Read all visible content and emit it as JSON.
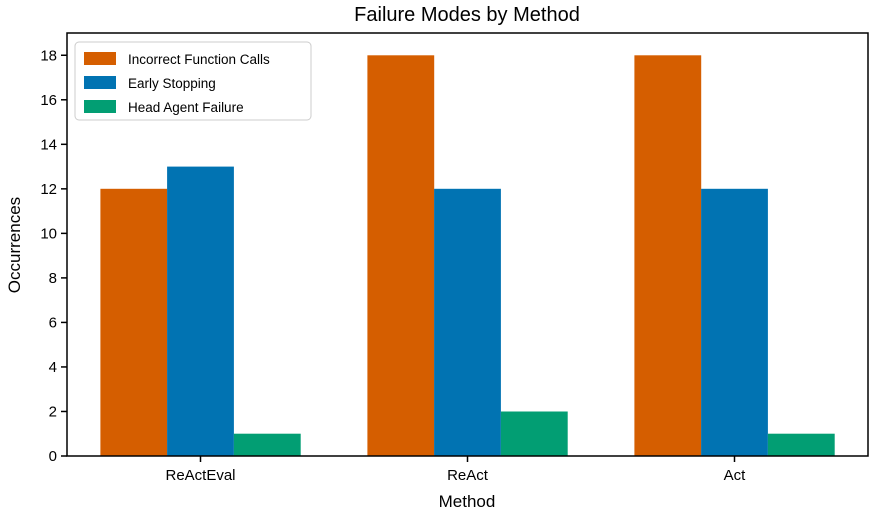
{
  "chart_data": {
    "type": "bar",
    "title": "Failure Modes by Method",
    "xlabel": "Method",
    "ylabel": "Occurrences",
    "categories": [
      "ReActEval",
      "ReAct",
      "Act"
    ],
    "series": [
      {
        "name": "Incorrect Function Calls",
        "color": "#d55e00",
        "values": [
          12,
          18,
          18
        ]
      },
      {
        "name": "Early Stopping",
        "color": "#0173b2",
        "values": [
          13,
          12,
          12
        ]
      },
      {
        "name": "Head Agent Failure",
        "color": "#029e73",
        "values": [
          1,
          2,
          1
        ]
      }
    ],
    "ylim": [
      0,
      19
    ],
    "yticks": [
      0,
      2,
      4,
      6,
      8,
      10,
      12,
      14,
      16,
      18
    ],
    "grid": false,
    "legend_position": "upper left",
    "axis_color": "#000000",
    "text_color": "#000000",
    "legend_border_color": "#cccccc",
    "legend_background": "#ffffff",
    "background": "#ffffff"
  }
}
